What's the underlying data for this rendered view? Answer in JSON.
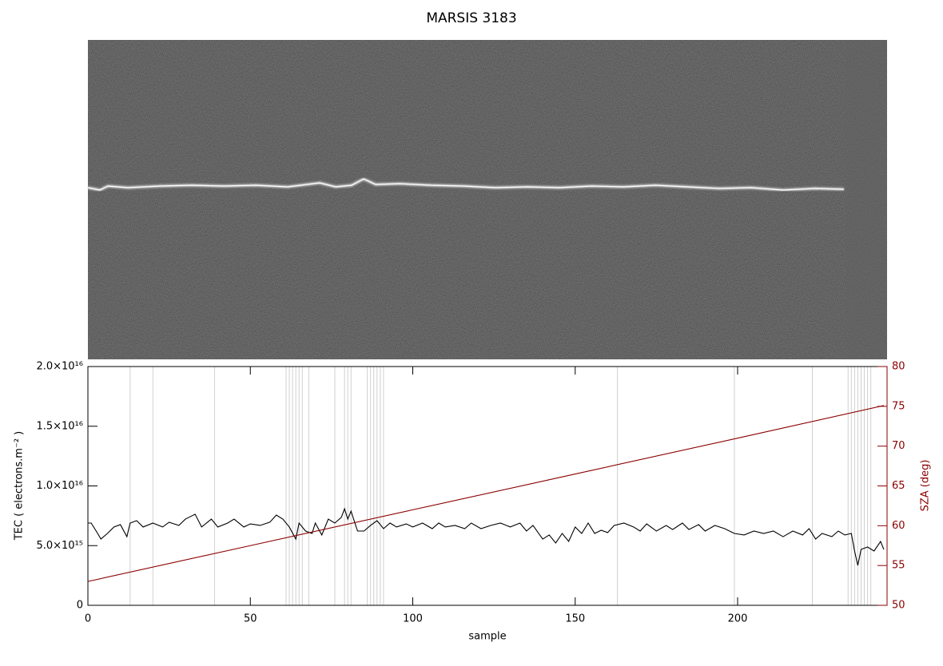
{
  "chart_data": {
    "type": "line",
    "title": "MARSIS 3183",
    "xlabel": "sample",
    "ylabel": "TEC ( electrons.m⁻² )",
    "y2label": "SZA (deg)",
    "xlim": [
      0,
      246
    ],
    "xticks": [
      0,
      50,
      100,
      150,
      200
    ],
    "ylim": [
      0,
      2e+16
    ],
    "yticks": [
      0,
      {
        "value": 5000000000000000.0,
        "label": "5.0×10¹⁵"
      },
      {
        "value": 1e+16,
        "label": "1.0×10¹⁶"
      },
      {
        "value": 1.5e+16,
        "label": "1.5×10¹⁶"
      },
      {
        "value": 2e+16,
        "label": "2.0×10¹⁶"
      }
    ],
    "y2lim": [
      50,
      80
    ],
    "y2ticks": [
      50,
      55,
      60,
      65,
      70,
      75,
      80
    ],
    "y2color": "#8b0000",
    "marker_lines": [
      13,
      20,
      39,
      61,
      62,
      63,
      64,
      65,
      66,
      68,
      76,
      79,
      80,
      81,
      86,
      87,
      88,
      89,
      90,
      91,
      163,
      199,
      223,
      234,
      235,
      236,
      237,
      238,
      239,
      240,
      241
    ],
    "marker_color": "#d0d0d0",
    "series": [
      {
        "color": "#000000",
        "x": [
          0,
          1,
          3,
          4,
          6,
          8,
          10,
          12,
          13,
          15,
          17,
          20,
          23,
          25,
          28,
          30,
          33,
          35,
          38,
          40,
          43,
          45,
          48,
          50,
          53,
          56,
          58,
          60,
          62,
          64,
          65,
          67,
          69,
          70,
          72,
          74,
          76,
          78,
          79,
          80,
          81,
          83,
          85,
          87,
          89,
          91,
          93,
          95,
          98,
          100,
          103,
          106,
          108,
          110,
          113,
          116,
          118,
          121,
          124,
          127,
          130,
          133,
          135,
          137,
          140,
          142,
          144,
          146,
          148,
          150,
          152,
          154,
          156,
          158,
          160,
          162,
          165,
          168,
          170,
          172,
          175,
          178,
          180,
          183,
          185,
          188,
          190,
          193,
          196,
          199,
          202,
          205,
          208,
          211,
          214,
          217,
          220,
          222,
          224,
          226,
          229,
          231,
          233,
          235,
          236,
          237,
          238,
          240,
          242,
          244,
          245
        ],
        "values": [
          6890000000000000.0,
          6890000000000000.0,
          6020000000000000.0,
          5550000000000000.0,
          6020000000000000.0,
          6560000000000000.0,
          6760000000000000.0,
          5750000000000000.0,
          6890000000000000.0,
          7090000000000000.0,
          6560000000000000.0,
          6890000000000000.0,
          6560000000000000.0,
          6960000000000000.0,
          6690000000000000.0,
          7220000000000000.0,
          7630000000000000.0,
          6560000000000000.0,
          7220000000000000.0,
          6560000000000000.0,
          6890000000000000.0,
          7220000000000000.0,
          6560000000000000.0,
          6820000000000000.0,
          6690000000000000.0,
          6960000000000000.0,
          7560000000000000.0,
          7220000000000000.0,
          6560000000000000.0,
          5550000000000000.0,
          6890000000000000.0,
          6220000000000000.0,
          6020000000000000.0,
          6890000000000000.0,
          5890000000000000.0,
          7220000000000000.0,
          6890000000000000.0,
          7360000000000000.0,
          8090000000000000.0,
          7220000000000000.0,
          7890000000000000.0,
          6220000000000000.0,
          6220000000000000.0,
          6690000000000000.0,
          7090000000000000.0,
          6420000000000000.0,
          6890000000000000.0,
          6560000000000000.0,
          6820000000000000.0,
          6560000000000000.0,
          6890000000000000.0,
          6420000000000000.0,
          6890000000000000.0,
          6560000000000000.0,
          6690000000000000.0,
          6420000000000000.0,
          6890000000000000.0,
          6420000000000000.0,
          6690000000000000.0,
          6890000000000000.0,
          6560000000000000.0,
          6890000000000000.0,
          6220000000000000.0,
          6690000000000000.0,
          5550000000000000.0,
          5890000000000000.0,
          5220000000000000.0,
          6020000000000000.0,
          5350000000000000.0,
          6560000000000000.0,
          6020000000000000.0,
          6890000000000000.0,
          6020000000000000.0,
          6290000000000000.0,
          6090000000000000.0,
          6690000000000000.0,
          6890000000000000.0,
          6560000000000000.0,
          6220000000000000.0,
          6820000000000000.0,
          6220000000000000.0,
          6690000000000000.0,
          6350000000000000.0,
          6890000000000000.0,
          6350000000000000.0,
          6760000000000000.0,
          6220000000000000.0,
          6690000000000000.0,
          6420000000000000.0,
          6020000000000000.0,
          5890000000000000.0,
          6220000000000000.0,
          6020000000000000.0,
          6220000000000000.0,
          5750000000000000.0,
          6220000000000000.0,
          5890000000000000.0,
          6420000000000000.0,
          5550000000000000.0,
          6020000000000000.0,
          5750000000000000.0,
          6220000000000000.0,
          5890000000000000.0,
          6020000000000000.0,
          4550000000000000.0,
          3340000000000000.0,
          4680000000000000.0,
          4880000000000000.0,
          4550000000000000.0,
          5350000000000000.0,
          4680000000000000.0
        ]
      },
      {
        "color": "#8b0000",
        "axis": "y2",
        "x": [
          0,
          50,
          100,
          150,
          200,
          245
        ],
        "values": [
          53.0,
          57.5,
          62.0,
          66.5,
          71.0,
          75.1
        ]
      }
    ]
  }
}
